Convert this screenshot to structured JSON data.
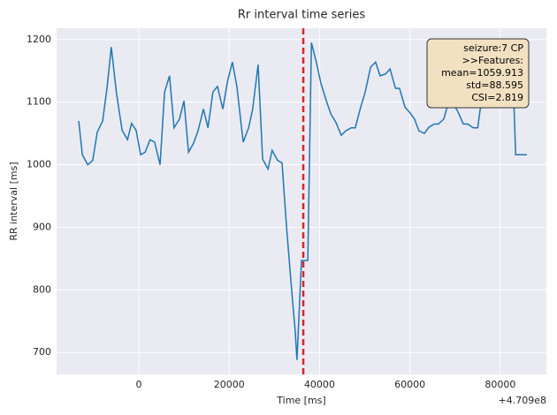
{
  "chart_data": {
    "type": "line",
    "title": "Rr interval time series",
    "xlabel": "Time [ms]",
    "ylabel": "RR interval [ms]",
    "x_offset_label": "+4.709e8",
    "x": [
      -13300,
      -12500,
      -11300,
      -10200,
      -9200,
      -8000,
      -7000,
      -6100,
      -4900,
      -3700,
      -2500,
      -1600,
      -600,
      400,
      1400,
      2500,
      3500,
      4700,
      5700,
      6800,
      7800,
      9000,
      10000,
      11000,
      12100,
      13100,
      14300,
      15300,
      16400,
      17400,
      18600,
      19600,
      20700,
      21700,
      23100,
      24300,
      25200,
      26400,
      27400,
      28600,
      29500,
      30700,
      31700,
      32700,
      33900,
      34600,
      35000,
      36000,
      37400,
      38200,
      39300,
      40300,
      41500,
      42500,
      43600,
      44800,
      45800,
      47000,
      47900,
      49100,
      50100,
      51300,
      52400,
      53400,
      54600,
      55600,
      56800,
      57700,
      58900,
      59900,
      61000,
      62000,
      63200,
      64200,
      65400,
      66300,
      67500,
      68500,
      69700,
      70600,
      71800,
      72800,
      74000,
      75000,
      76100,
      77100,
      78300,
      79300,
      80400,
      81600,
      82600,
      83400,
      85900
    ],
    "series": [
      {
        "color": "#1f77b4",
        "values": [
          1070,
          1016,
          1000,
          1007,
          1052,
          1070,
          1125,
          1188,
          1112,
          1055,
          1040,
          1066,
          1055,
          1016,
          1020,
          1040,
          1036,
          1000,
          1116,
          1142,
          1059,
          1073,
          1102,
          1020,
          1034,
          1054,
          1089,
          1059,
          1116,
          1125,
          1089,
          1132,
          1164,
          1125,
          1036,
          1059,
          1089,
          1160,
          1009,
          993,
          1023,
          1007,
          1003,
          900,
          793,
          735,
          688,
          847,
          847,
          1195,
          1163,
          1130,
          1102,
          1081,
          1068,
          1047,
          1054,
          1059,
          1059,
          1092,
          1116,
          1156,
          1164,
          1142,
          1145,
          1153,
          1122,
          1122,
          1092,
          1084,
          1073,
          1054,
          1050,
          1060,
          1065,
          1065,
          1073,
          1099,
          1096,
          1085,
          1065,
          1065,
          1059,
          1059,
          1118,
          1122,
          1138,
          1160,
          1176,
          1195,
          1184,
          1016,
          1016
        ]
      }
    ],
    "vlines": [
      {
        "x": 36400,
        "color": "#d62728"
      }
    ],
    "annotation": {
      "lines": [
        "seizure:7 CP",
        ">>Features:",
        "mean=1059.913",
        "std=88.595",
        "CSI=2.819"
      ],
      "color": "#f2e1c1"
    },
    "xlim": [
      -18200,
      90200
    ],
    "ylim": [
      665,
      1218
    ],
    "xticks": [
      0,
      20000,
      40000,
      60000,
      80000
    ],
    "yticks": [
      700,
      800,
      900,
      1000,
      1100,
      1200
    ],
    "grid": true
  }
}
